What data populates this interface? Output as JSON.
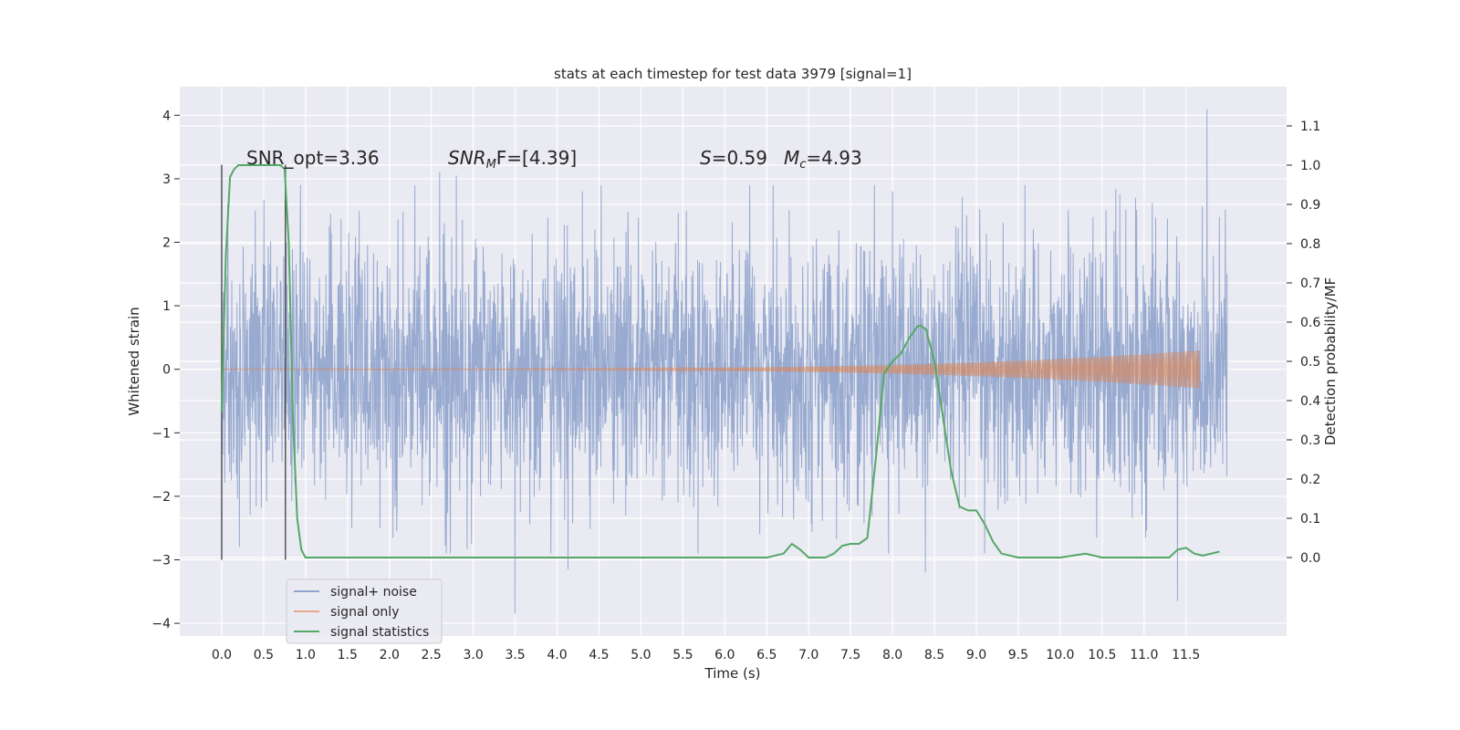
{
  "chart_data": {
    "type": "line",
    "title": "stats at each timestep for test data 3979 [signal=1]",
    "xlabel": "Time (s)",
    "ylabel": "Whitened strain",
    "y2label": "Detection probability/MF",
    "xlim": [
      -0.5,
      12.7
    ],
    "ylim": [
      -4.2,
      4.45
    ],
    "y2lim": [
      -0.2,
      1.2
    ],
    "x_ticks": [
      "0.0",
      "0.5",
      "1.0",
      "1.5",
      "2.0",
      "2.5",
      "3.0",
      "3.5",
      "4.0",
      "4.5",
      "5.0",
      "5.5",
      "6.0",
      "6.5",
      "7.0",
      "7.5",
      "8.0",
      "8.5",
      "9.0",
      "9.5",
      "10.0",
      "10.5",
      "11.0",
      "11.5"
    ],
    "y_ticks": [
      "−4",
      "−3",
      "−2",
      "−1",
      "0",
      "1",
      "2",
      "3",
      "4"
    ],
    "y2_ticks": [
      "0.0",
      "0.1",
      "0.2",
      "0.3",
      "0.4",
      "0.5",
      "0.6",
      "0.7",
      "0.8",
      "0.9",
      "1.0",
      "1.1"
    ],
    "grid": true,
    "legend_position": "lower-left",
    "annotations": {
      "snr_opt": "SNR_opt=3.36",
      "snr_mf_sym": "SNR",
      "snr_mf_sub": "M",
      "snr_mf_rest": "F=[4.39]",
      "s_sym": "S",
      "s_rest": "=0.59",
      "mc_sym": "M",
      "mc_sub": "c",
      "mc_rest": "=4.93"
    },
    "markers": [
      0.0,
      0.76
    ],
    "series": [
      {
        "name": "signal+ noise",
        "color": "#8fa3cc",
        "x_range": [
          0.0,
          11.99
        ],
        "envelope_std": 1.0,
        "peaks": [
          [
            0.07,
            2.6
          ],
          [
            0.4,
            2.5
          ],
          [
            1.3,
            2.45
          ],
          [
            2.6,
            3.1
          ],
          [
            2.8,
            3.05
          ],
          [
            3.5,
            -3.85
          ],
          [
            4.13,
            -3.15
          ],
          [
            4.3,
            2.8
          ],
          [
            8.0,
            2.8
          ],
          [
            8.39,
            -3.2
          ],
          [
            10.9,
            2.7
          ],
          [
            11.4,
            -3.65
          ],
          [
            11.75,
            4.1
          ],
          [
            11.9,
            2.4
          ]
        ]
      },
      {
        "name": "signal only",
        "color": "#dd8452",
        "x_range": [
          0.0,
          11.66
        ],
        "amplitude_start": 0.005,
        "amplitude_end": 0.3
      },
      {
        "name": "signal statistics",
        "color": "#55a868",
        "x": [
          0.0,
          0.05,
          0.1,
          0.15,
          0.2,
          0.3,
          0.4,
          0.5,
          0.6,
          0.7,
          0.75,
          0.8,
          0.85,
          0.9,
          0.95,
          1.0,
          1.1,
          1.5,
          2.0,
          2.5,
          3.0,
          3.5,
          4.0,
          5.0,
          6.0,
          6.5,
          6.7,
          6.8,
          6.9,
          7.0,
          7.2,
          7.3,
          7.4,
          7.5,
          7.6,
          7.7,
          7.8,
          7.9,
          8.0,
          8.1,
          8.2,
          8.3,
          8.35,
          8.4,
          8.5,
          8.6,
          8.7,
          8.8,
          8.9,
          9.0,
          9.1,
          9.2,
          9.3,
          9.5,
          10.0,
          10.3,
          10.5,
          11.0,
          11.3,
          11.4,
          11.5,
          11.6,
          11.7,
          11.8,
          11.9
        ],
        "y": [
          0.37,
          0.77,
          0.97,
          0.99,
          1.0,
          1.0,
          1.0,
          1.0,
          1.0,
          1.0,
          0.99,
          0.8,
          0.35,
          0.1,
          0.02,
          0.0,
          0.0,
          0.0,
          0.0,
          0.0,
          0.0,
          0.0,
          0.0,
          0.0,
          0.0,
          0.0,
          0.01,
          0.035,
          0.02,
          0.0,
          0.0,
          0.01,
          0.03,
          0.035,
          0.035,
          0.05,
          0.25,
          0.47,
          0.5,
          0.52,
          0.56,
          0.59,
          0.59,
          0.58,
          0.5,
          0.36,
          0.22,
          0.13,
          0.12,
          0.12,
          0.085,
          0.04,
          0.01,
          0.0,
          0.0,
          0.01,
          0.0,
          0.0,
          0.0,
          0.02,
          0.025,
          0.01,
          0.005,
          0.01,
          0.015
        ]
      }
    ]
  }
}
